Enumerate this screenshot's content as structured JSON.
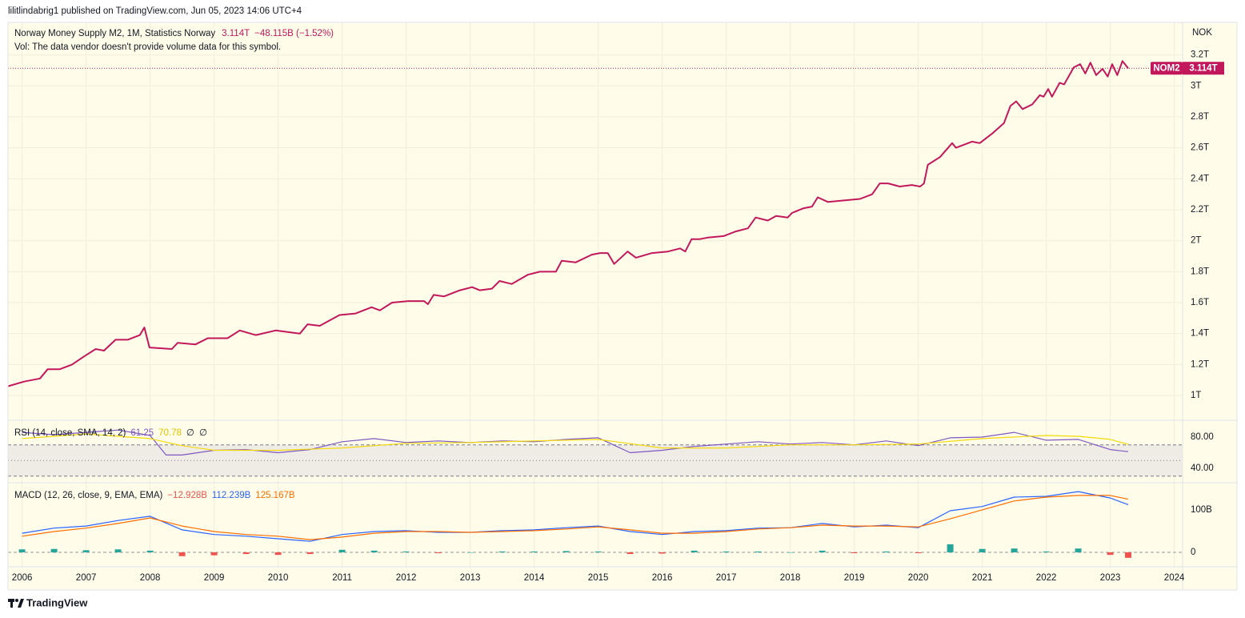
{
  "header": "lilitlindabrig1 published on TradingView.com, Jun 05, 2023 14:06 UTC+4",
  "footer": "TradingView",
  "chart_data": [
    {
      "type": "line",
      "legend": {
        "title": "Norway Money Supply M2, 1M, Statistics Norway",
        "last": "3.114T",
        "change": "−48.115B (−1.52%)",
        "volume_note": "Vol: The data vendor doesn't provide volume data for this symbol."
      },
      "axis_unit": "NOK",
      "price_tag": {
        "symbol": "NOM2",
        "label": "3.114T"
      },
      "xlim": [
        2005.78,
        2024.13
      ],
      "xticks": [
        2006,
        2007,
        2008,
        2009,
        2010,
        2011,
        2012,
        2013,
        2014,
        2015,
        2016,
        2017,
        2018,
        2019,
        2020,
        2021,
        2022,
        2023,
        2024
      ],
      "ylim": [
        0.84,
        3.41
      ],
      "yticks": [
        {
          "value": 1,
          "label": "1T"
        },
        {
          "value": 1.2,
          "label": "1.2T"
        },
        {
          "value": 1.4,
          "label": "1.4T"
        },
        {
          "value": 1.6,
          "label": "1.6T"
        },
        {
          "value": 1.8,
          "label": "1.8T"
        },
        {
          "value": 2,
          "label": "2T"
        },
        {
          "value": 2.2,
          "label": "2.2T"
        },
        {
          "value": 2.4,
          "label": "2.4T"
        },
        {
          "value": 2.6,
          "label": "2.6T"
        },
        {
          "value": 2.8,
          "label": "2.8T"
        },
        {
          "value": 3,
          "label": "3T"
        },
        {
          "value": 3.2,
          "label": "3.2T"
        }
      ],
      "grid": true,
      "series": [
        {
          "color": "#c2185b",
          "x": [
            2005.78,
            2006.03,
            2006.28,
            2006.4,
            2006.59,
            2006.78,
            2006.96,
            2007.15,
            2007.28,
            2007.46,
            2007.65,
            2007.84,
            2007.91,
            2007.99,
            2008.34,
            2008.43,
            2008.71,
            2008.9,
            2009.21,
            2009.4,
            2009.65,
            2009.96,
            2010.34,
            2010.46,
            2010.65,
            2010.96,
            2011.21,
            2011.46,
            2011.59,
            2011.78,
            2012.03,
            2012.28,
            2012.34,
            2012.43,
            2012.59,
            2012.84,
            2013.03,
            2013.15,
            2013.34,
            2013.46,
            2013.65,
            2013.9,
            2014.09,
            2014.34,
            2014.43,
            2014.65,
            2014.9,
            2015.03,
            2015.15,
            2015.25,
            2015.46,
            2015.59,
            2015.84,
            2016.09,
            2016.28,
            2016.36,
            2016.46,
            2016.59,
            2016.71,
            2016.96,
            2017.15,
            2017.34,
            2017.46,
            2017.65,
            2017.78,
            2017.96,
            2018.03,
            2018.21,
            2018.34,
            2018.43,
            2018.59,
            2018.84,
            2019.09,
            2019.28,
            2019.4,
            2019.53,
            2019.71,
            2019.9,
            2020.03,
            2020.09,
            2020.15,
            2020.34,
            2020.53,
            2020.59,
            2020.84,
            2020.96,
            2021.15,
            2021.34,
            2021.44,
            2021.53,
            2021.63,
            2021.78,
            2021.9,
            2021.96,
            2022.03,
            2022.09,
            2022.21,
            2022.28,
            2022.43,
            2022.53,
            2022.61,
            2022.69,
            2022.78,
            2022.88,
            2022.96,
            2023.03,
            2023.11,
            2023.19,
            2023.28
          ],
          "values": [
            1.06,
            1.09,
            1.11,
            1.17,
            1.17,
            1.2,
            1.25,
            1.3,
            1.29,
            1.36,
            1.36,
            1.39,
            1.44,
            1.31,
            1.3,
            1.34,
            1.33,
            1.37,
            1.37,
            1.42,
            1.39,
            1.42,
            1.4,
            1.46,
            1.45,
            1.52,
            1.53,
            1.57,
            1.55,
            1.6,
            1.61,
            1.61,
            1.59,
            1.65,
            1.64,
            1.68,
            1.7,
            1.68,
            1.69,
            1.74,
            1.72,
            1.78,
            1.8,
            1.8,
            1.87,
            1.86,
            1.91,
            1.92,
            1.92,
            1.85,
            1.93,
            1.89,
            1.92,
            1.93,
            1.95,
            1.93,
            2.01,
            2.01,
            2.02,
            2.03,
            2.06,
            2.08,
            2.15,
            2.13,
            2.16,
            2.15,
            2.18,
            2.21,
            2.22,
            2.28,
            2.25,
            2.26,
            2.27,
            2.3,
            2.37,
            2.37,
            2.35,
            2.36,
            2.35,
            2.37,
            2.49,
            2.54,
            2.63,
            2.6,
            2.64,
            2.63,
            2.69,
            2.76,
            2.87,
            2.9,
            2.85,
            2.88,
            2.94,
            2.93,
            2.98,
            2.93,
            3.02,
            3.01,
            3.12,
            3.14,
            3.08,
            3.15,
            3.07,
            3.11,
            3.06,
            3.14,
            3.07,
            3.16,
            3.114
          ]
        }
      ]
    },
    {
      "type": "line",
      "legend": {
        "title": "RSI (14, close, SMA, 14, 2)",
        "values": [
          "61.25",
          "70.78",
          "∅",
          "∅"
        ]
      },
      "ylim": [
        21.5,
        101.5
      ],
      "yticks": [
        {
          "value": 80,
          "label": "80.00"
        },
        {
          "value": 40,
          "label": "40.00"
        }
      ],
      "bands": [
        70,
        50,
        30
      ],
      "band_fill": "#efece6",
      "series": [
        {
          "color": "#7e57c2",
          "x": [
            2006,
            2006.5,
            2007,
            2007.5,
            2008,
            2008.25,
            2008.5,
            2009,
            2009.5,
            2010,
            2010.5,
            2011,
            2011.5,
            2012,
            2012.5,
            2013,
            2013.5,
            2014,
            2014.5,
            2015,
            2015.5,
            2016,
            2016.5,
            2017,
            2017.5,
            2018,
            2018.5,
            2019,
            2019.5,
            2020,
            2020.5,
            2021,
            2021.5,
            2022,
            2022.5,
            2023,
            2023.28
          ],
          "values": [
            86,
            83,
            86,
            89,
            82,
            57,
            57,
            63,
            64,
            60,
            64,
            74,
            78,
            73,
            75,
            73,
            75,
            74,
            77,
            79,
            60,
            63,
            68,
            71,
            74,
            71,
            73,
            70,
            75,
            69,
            79,
            80,
            86,
            76,
            77,
            64,
            61.25
          ]
        },
        {
          "color": "#f5d90a",
          "x": [
            2006,
            2007,
            2008,
            2008.5,
            2009,
            2010,
            2011,
            2012,
            2013,
            2014,
            2015,
            2016,
            2017,
            2018,
            2019,
            2020,
            2021,
            2022,
            2022.5,
            2023,
            2023.28
          ],
          "values": [
            78,
            84,
            78,
            69,
            63,
            63,
            66,
            72,
            73,
            75,
            77,
            66,
            66,
            70,
            70,
            71,
            78,
            82,
            81,
            77,
            70.78
          ]
        }
      ]
    },
    {
      "type": "line",
      "legend": {
        "title": "MACD (12, 26, close, 9, EMA, EMA)",
        "values": [
          "−12.928B",
          "112.239B",
          "125.167B"
        ]
      },
      "ylim": [
        -34,
        164
      ],
      "yticks": [
        {
          "value": 100,
          "label": "100B"
        },
        0
      ],
      "zero_line": true,
      "series": [
        {
          "type": "bar",
          "up_color": "#26a69a",
          "down_color": "#ef5350",
          "x": [
            2006,
            2006.5,
            2007,
            2007.5,
            2008,
            2008.5,
            2009,
            2009.5,
            2010,
            2010.5,
            2011,
            2011.5,
            2012,
            2012.5,
            2013,
            2013.5,
            2014,
            2014.5,
            2015,
            2015.5,
            2016,
            2016.5,
            2017,
            2017.5,
            2018,
            2018.5,
            2019,
            2019.5,
            2020,
            2020.5,
            2021,
            2021.5,
            2022,
            2022.5,
            2023,
            2023.28
          ],
          "values": [
            7,
            8,
            5,
            7,
            4,
            -9,
            -7,
            -4,
            -6,
            -4,
            6,
            4,
            2,
            -2,
            0,
            2,
            2,
            3,
            2,
            -4,
            -3,
            4,
            2,
            2,
            0,
            4,
            -2,
            2,
            -2,
            19,
            8,
            9,
            2,
            9,
            -6,
            -12.928
          ]
        },
        {
          "color": "#2962ff",
          "x": [
            2006,
            2006.5,
            2007,
            2007.5,
            2008,
            2008.5,
            2009,
            2009.5,
            2010,
            2010.5,
            2011,
            2011.5,
            2012,
            2012.5,
            2013,
            2013.5,
            2014,
            2014.5,
            2015,
            2015.5,
            2016,
            2016.5,
            2017,
            2017.5,
            2018,
            2018.5,
            2019,
            2019.5,
            2020,
            2020.5,
            2021,
            2021.5,
            2022,
            2022.5,
            2023,
            2023.28
          ],
          "values": [
            45,
            57,
            62,
            75,
            85,
            53,
            42,
            38,
            32,
            26,
            42,
            49,
            51,
            47,
            47,
            51,
            53,
            58,
            62,
            49,
            42,
            49,
            51,
            57,
            58,
            68,
            60,
            64,
            58,
            98,
            108,
            130,
            132,
            143,
            128,
            112.239
          ]
        },
        {
          "color": "#ff6d00",
          "x": [
            2006,
            2006.5,
            2007,
            2007.5,
            2008,
            2008.5,
            2009,
            2009.5,
            2010,
            2010.5,
            2011,
            2011.5,
            2012,
            2012.5,
            2013,
            2013.5,
            2014,
            2014.5,
            2015,
            2015.5,
            2016,
            2016.5,
            2017,
            2017.5,
            2018,
            2018.5,
            2019,
            2019.5,
            2020,
            2020.5,
            2021,
            2021.5,
            2022,
            2022.5,
            2023,
            2023.28
          ],
          "values": [
            38,
            49,
            57,
            68,
            81,
            62,
            49,
            42,
            38,
            30,
            36,
            45,
            49,
            49,
            47,
            49,
            51,
            55,
            60,
            53,
            45,
            45,
            49,
            55,
            58,
            64,
            62,
            62,
            60,
            79,
            100,
            121,
            130,
            134,
            134,
            125.167
          ]
        }
      ]
    }
  ]
}
